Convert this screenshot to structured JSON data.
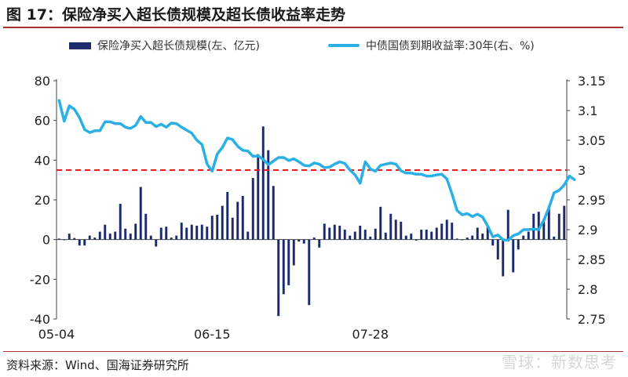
{
  "header": {
    "title": "图 17：保险净买入超长债规模及超长债收益率走势"
  },
  "footer": {
    "source": "资料来源：Wind、国海证券研究所",
    "watermark": "雪球：新数思考"
  },
  "chart_data": {
    "type": "bar+line",
    "legend_placement": "top",
    "series": [
      {
        "name": "保险净买入超长债规模(左、亿元)",
        "type": "bar",
        "axis": "left",
        "color": "#1c2a6b"
      },
      {
        "name": "中债国债到期收益率:30年(右、%)",
        "type": "line",
        "axis": "right",
        "color": "#2bb0e6"
      }
    ],
    "x_tick_labels": [
      "05-04",
      "06-15",
      "07-28"
    ],
    "x_tick_index": [
      0,
      30,
      61
    ],
    "left_axis": {
      "min": -40,
      "max": 80,
      "ticks": [
        -40,
        -20,
        0,
        20,
        40,
        60,
        80
      ]
    },
    "right_axis": {
      "min": 2.75,
      "max": 3.15,
      "ticks": [
        2.75,
        2.8,
        2.85,
        2.9,
        2.95,
        3,
        3.05,
        3.1,
        3.15
      ],
      "tick_labels": [
        "2.75",
        "2.8",
        "2.85",
        "2.9",
        "2.95",
        "3",
        "3.05",
        "3.1",
        "3.15"
      ]
    },
    "reference_line": {
      "axis": "left",
      "value": 35,
      "color": "#e02020",
      "style": "dashed"
    },
    "bar_values": [
      0.5,
      -0.3,
      3,
      0.8,
      -3,
      -3,
      2,
      1,
      4,
      7.5,
      3,
      4,
      18,
      5.5,
      3,
      8,
      26.5,
      13,
      2,
      -3.5,
      6,
      6.5,
      1,
      2,
      8.5,
      6,
      7.5,
      7,
      7.5,
      6.5,
      12,
      12.5,
      17,
      24,
      11,
      19,
      22,
      4,
      31,
      43,
      57,
      45,
      27,
      -38.5,
      -27.5,
      -23,
      -13,
      -1,
      -2,
      -33,
      1,
      -4,
      8,
      6,
      7.5,
      7,
      5,
      2,
      4,
      7,
      5,
      1.5,
      5.5,
      16.5,
      3.5,
      13,
      10,
      9,
      2,
      3,
      -0.5,
      5,
      5,
      4,
      6,
      8,
      10,
      8.5,
      0.5,
      0,
      1,
      2,
      6,
      3,
      7,
      -3,
      -10,
      -18.5,
      15,
      -16.5,
      -5,
      2,
      4,
      13,
      14,
      10,
      17,
      1.5,
      13,
      17
    ],
    "line_values": [
      3.117,
      3.082,
      3.108,
      3.102,
      3.088,
      3.068,
      3.063,
      3.066,
      3.066,
      3.081,
      3.081,
      3.078,
      3.078,
      3.072,
      3.07,
      3.075,
      3.09,
      3.08,
      3.08,
      3.073,
      3.077,
      3.072,
      3.079,
      3.078,
      3.072,
      3.067,
      3.062,
      3.05,
      3.043,
      3.01,
      2.998,
      3.027,
      3.038,
      3.054,
      3.051,
      3.04,
      3.033,
      3.032,
      3.023,
      3.024,
      3.018,
      3.009,
      3.015,
      3.021,
      3.021,
      3.016,
      3.019,
      3.014,
      3.008,
      3.007,
      3.012,
      3.01,
      3.004,
      3.005,
      3.01,
      3.014,
      3.011,
      3.0,
      2.992,
      2.978,
      3.014,
      3.002,
      2.998,
      3.008,
      3.01,
      3.012,
      3.01,
      2.999,
      2.995,
      2.995,
      2.993,
      2.993,
      2.99,
      2.99,
      2.992,
      2.993,
      2.985,
      2.96,
      2.932,
      2.925,
      2.927,
      2.922,
      2.926,
      2.921,
      2.906,
      2.888,
      2.891,
      2.883,
      2.882,
      2.89,
      2.893,
      2.9,
      2.9,
      2.901,
      2.9,
      2.916,
      2.937,
      2.962,
      2.966,
      2.975,
      2.99,
      2.984
    ]
  }
}
